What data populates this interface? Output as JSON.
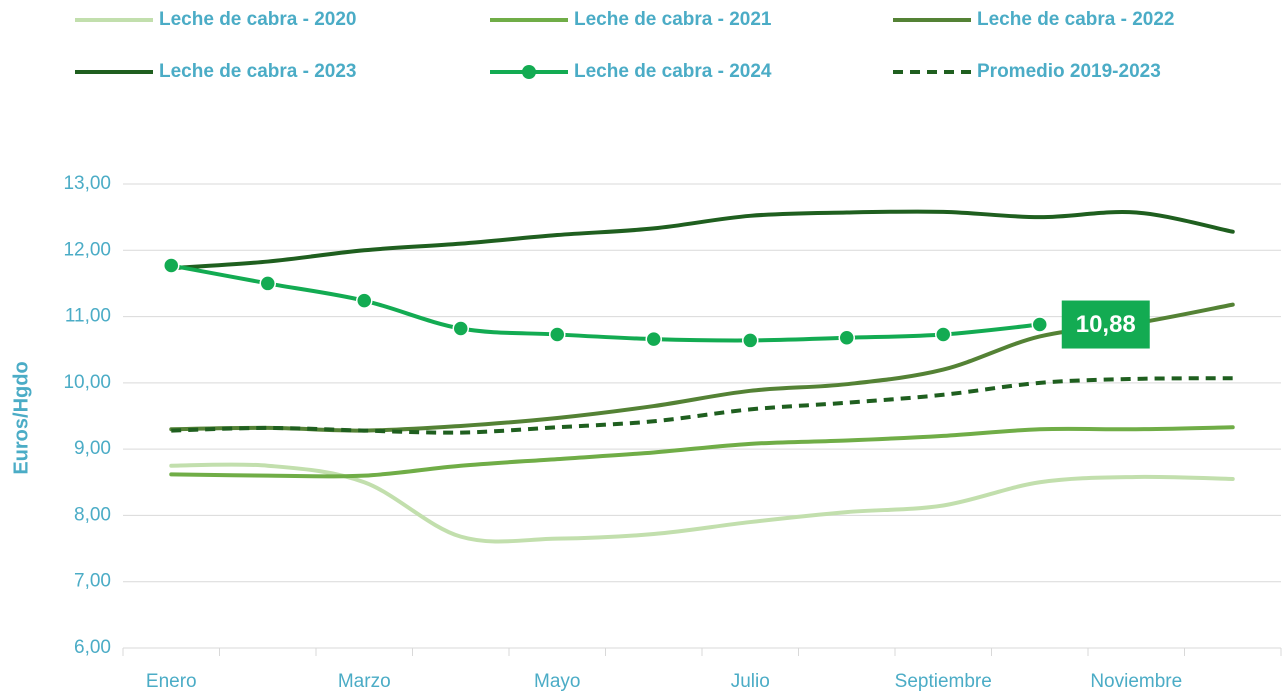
{
  "chart_data": {
    "type": "line",
    "y_label": "Euros/Hgdo",
    "categories": [
      "Enero",
      null,
      "Marzo",
      null,
      "Mayo",
      null,
      "Julio",
      null,
      "Septiembre",
      null,
      "Noviembre",
      null
    ],
    "ylim": [
      6,
      13
    ],
    "yticks": [
      {
        "value": 6,
        "label": "6,00"
      },
      {
        "value": 7,
        "label": "7,00"
      },
      {
        "value": 8,
        "label": "8,00"
      },
      {
        "value": 9,
        "label": "9,00"
      },
      {
        "value": 10,
        "label": "10,00"
      },
      {
        "value": 11,
        "label": "11,00"
      },
      {
        "value": 12,
        "label": "12,00"
      },
      {
        "value": 13,
        "label": "13,00"
      }
    ],
    "grid": true,
    "legend": "top",
    "series": [
      {
        "name": "Leche de cabra - 2020",
        "color": "#c2dfad",
        "values": [
          8.75,
          8.75,
          8.5,
          7.68,
          7.65,
          7.72,
          7.9,
          8.05,
          8.15,
          8.5,
          8.58,
          8.55
        ]
      },
      {
        "name": "Leche de cabra - 2021",
        "color": "#70ad47",
        "values": [
          8.62,
          8.6,
          8.6,
          8.75,
          8.85,
          8.95,
          9.08,
          9.13,
          9.2,
          9.3,
          9.3,
          9.33
        ]
      },
      {
        "name": "Leche de cabra - 2022",
        "color": "#548235",
        "values": [
          9.3,
          9.32,
          9.28,
          9.35,
          9.47,
          9.65,
          9.88,
          9.98,
          10.2,
          10.7,
          10.9,
          11.18
        ]
      },
      {
        "name": "Leche de cabra - 2023",
        "color": "#1f5f1f",
        "values": [
          11.73,
          11.83,
          12.0,
          12.1,
          12.23,
          12.33,
          12.52,
          12.57,
          12.58,
          12.5,
          12.57,
          12.28
        ]
      },
      {
        "name": "Leche de cabra - 2024",
        "color": "#13ab52",
        "marker": "circle",
        "values": [
          11.77,
          11.5,
          11.24,
          10.82,
          10.73,
          10.66,
          10.64,
          10.68,
          10.73,
          10.88,
          null,
          null
        ],
        "value_labels": [
          null,
          null,
          null,
          null,
          null,
          null,
          null,
          null,
          null,
          "10,88",
          null,
          null
        ]
      },
      {
        "name": "Promedio 2019-2023",
        "color": "#1f5f1f",
        "line_style": "dashed",
        "values": [
          9.28,
          9.32,
          9.28,
          9.25,
          9.33,
          9.42,
          9.6,
          9.7,
          9.82,
          10.0,
          10.06,
          10.07
        ]
      }
    ]
  }
}
